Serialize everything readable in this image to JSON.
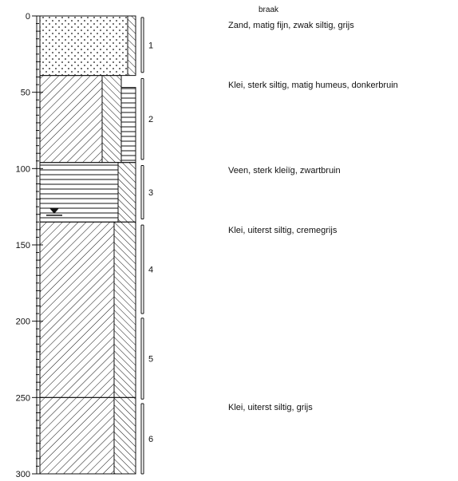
{
  "header_label": "braak",
  "depth_axis": {
    "ticks": [
      0,
      50,
      100,
      150,
      200,
      250,
      300
    ],
    "range": [
      0,
      300
    ],
    "minor_step": 5,
    "mid_step": 10
  },
  "layers": [
    {
      "top": 0,
      "bottom": 39,
      "pattern": "sand-dots",
      "sub_bottom": 39,
      "sub_pattern": "hatch-back"
    },
    {
      "top": 39,
      "bottom": 96,
      "pattern": "clay-hatch",
      "sub_bottom": 96,
      "sub_pattern": "hatch-back-horizontal"
    },
    {
      "top": 96,
      "bottom": 135,
      "pattern": "peat-horizontal",
      "sub_bottom": 135,
      "sub_pattern": "hatch-narrow"
    },
    {
      "top": 135,
      "bottom": 250,
      "pattern": "clay-hatch",
      "sub_bottom": 250,
      "sub_pattern": "hatch-back"
    },
    {
      "top": 250,
      "bottom": 300,
      "pattern": "clay-hatch",
      "sub_bottom": 300,
      "sub_pattern": "hatch-back"
    }
  ],
  "samples": [
    {
      "label": "1",
      "top": 1,
      "bottom": 37
    },
    {
      "label": "2",
      "top": 41,
      "bottom": 94
    },
    {
      "label": "3",
      "top": 98,
      "bottom": 133
    },
    {
      "label": "4",
      "top": 137,
      "bottom": 195
    },
    {
      "label": "5",
      "top": 198,
      "bottom": 251
    },
    {
      "label": "6",
      "top": 254,
      "bottom": 300
    }
  ],
  "groundwater_level": 128,
  "descriptions": [
    {
      "text": "Zand, matig fijn, zwak siltig, grijs",
      "depth": 7
    },
    {
      "text": "Klei, sterk siltig, matig humeus, donkerbruin",
      "depth": 46
    },
    {
      "text": "Veen, sterk kleiïg, zwartbruin",
      "depth": 102
    },
    {
      "text": "Klei, uiterst siltig, cremegrijs",
      "depth": 141
    },
    {
      "text": "Klei, uiterst siltig, grijs",
      "depth": 257
    }
  ]
}
